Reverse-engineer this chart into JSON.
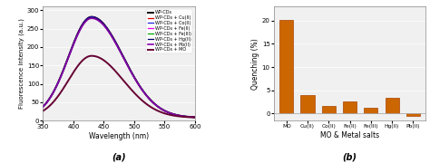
{
  "left_chart": {
    "xlabel": "Wavelength (nm)",
    "ylabel": "Fluorescence intensity (a.u.)",
    "xlim": [
      350,
      600
    ],
    "ylim": [
      0,
      310
    ],
    "yticks": [
      0,
      50,
      100,
      150,
      200,
      250,
      300
    ],
    "xticks": [
      350,
      400,
      450,
      500,
      550,
      600
    ],
    "label_bottom": "(a)",
    "lines": [
      {
        "label": "WP-CDs",
        "color": "#000000",
        "peak": 282,
        "lw": 1.4
      },
      {
        "label": "WP-CDs + Cu(II)",
        "color": "#dd0000",
        "peak": 282,
        "lw": 0.9
      },
      {
        "label": "WP-CDs + Co(II)",
        "color": "#2222dd",
        "peak": 282,
        "lw": 0.9
      },
      {
        "label": "WP-CDs + Fe(II)",
        "color": "#ee00ee",
        "peak": 280,
        "lw": 0.9
      },
      {
        "label": "WP-CDs + Fe(III)",
        "color": "#00aa00",
        "peak": 279,
        "lw": 0.9
      },
      {
        "label": "WP-CDs + Hg(II)",
        "color": "#000066",
        "peak": 281,
        "lw": 0.9
      },
      {
        "label": "WP-CDs + Pb(II)",
        "color": "#8800aa",
        "peak": 278,
        "lw": 1.2
      },
      {
        "label": "WP-CDs + MO",
        "color": "#660033",
        "peak": 176,
        "lw": 1.4
      }
    ],
    "bg_color": "#f0f0f0"
  },
  "right_chart": {
    "categories": [
      "MO",
      "Cu(II)",
      "Co(II)",
      "Fe(II)",
      "Fe(III)",
      "Hg(II)",
      "Pb(II)"
    ],
    "values": [
      20.2,
      3.9,
      1.7,
      2.7,
      1.2,
      3.4,
      -0.5
    ],
    "bar_color": "#cc6600",
    "edge_color": "#aa4400",
    "xlabel": "MO & Metal salts",
    "ylabel": "Quenching (%)",
    "ylim": [
      -1.5,
      23
    ],
    "yticks": [
      0,
      5,
      10,
      15,
      20
    ],
    "label_bottom": "(b)",
    "bg_color": "#f0f0f0"
  },
  "fig_bg": "#f5f5f5"
}
